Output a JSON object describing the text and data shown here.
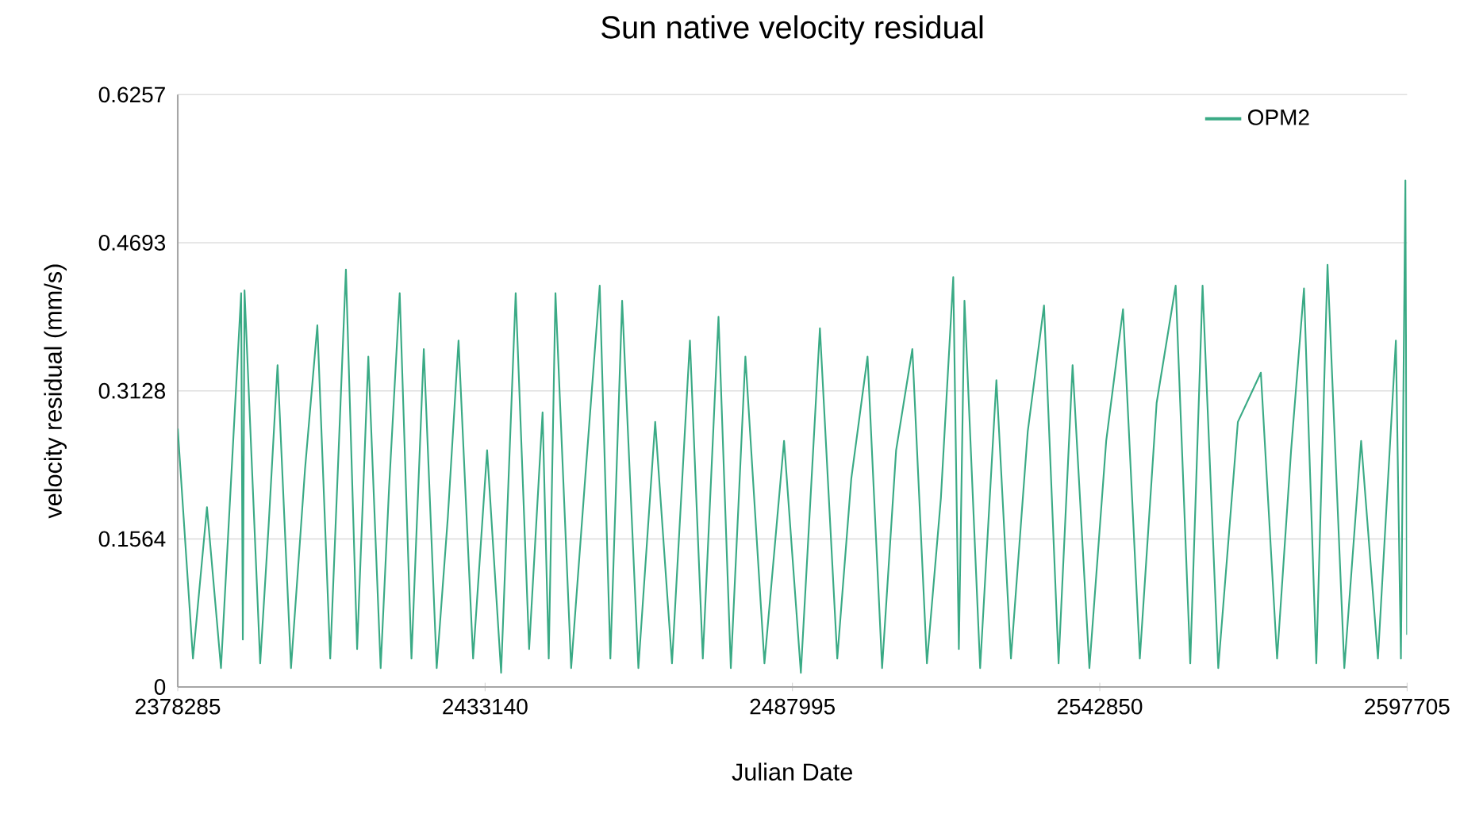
{
  "chart_data": {
    "type": "line",
    "title": "Sun native velocity residual",
    "xlabel": "Julian Date",
    "ylabel": "velocity residual (mm/s)",
    "xlim": [
      2378285,
      2597705
    ],
    "xticks": [
      2378285,
      2433140,
      2487995,
      2542850,
      2597705
    ],
    "ylim": [
      0,
      0.6257
    ],
    "yticks": [
      0,
      0.1564,
      0.3128,
      0.4693,
      0.6257
    ],
    "grid": "y",
    "legend": "top right",
    "marker": "none",
    "line_style": "solid",
    "series": [
      {
        "name": "OPM2",
        "color": "#3aaa85",
        "x": [
          2378285,
          2381000,
          2383500,
          2386000,
          2389600,
          2389900,
          2390200,
          2393000,
          2394500,
          2396100,
          2398500,
          2401000,
          2403200,
          2405500,
          2408300,
          2410300,
          2412300,
          2414500,
          2416000,
          2417900,
          2420000,
          2422200,
          2424500,
          2426500,
          2428400,
          2431000,
          2433500,
          2436000,
          2438600,
          2441000,
          2443400,
          2444500,
          2445700,
          2448500,
          2451000,
          2453600,
          2455500,
          2457600,
          2460500,
          2463500,
          2466500,
          2469700,
          2472000,
          2474800,
          2477000,
          2479600,
          2483000,
          2486500,
          2489500,
          2492900,
          2496000,
          2498500,
          2501400,
          2504000,
          2506500,
          2509400,
          2512000,
          2514500,
          2516700,
          2517700,
          2518700,
          2521500,
          2524400,
          2527000,
          2530000,
          2532900,
          2535500,
          2538000,
          2541000,
          2544000,
          2547000,
          2550000,
          2553000,
          2556400,
          2559000,
          2561200,
          2564000,
          2567500,
          2571600,
          2574500,
          2577000,
          2579300,
          2581500,
          2583500,
          2586500,
          2589500,
          2592500,
          2595700,
          2596600,
          2597400,
          2597705
        ],
        "values": [
          0.273,
          0.03,
          0.19,
          0.02,
          0.416,
          0.05,
          0.419,
          0.025,
          0.17,
          0.34,
          0.02,
          0.23,
          0.382,
          0.03,
          0.441,
          0.04,
          0.349,
          0.02,
          0.21,
          0.416,
          0.03,
          0.357,
          0.02,
          0.18,
          0.366,
          0.03,
          0.25,
          0.015,
          0.416,
          0.04,
          0.29,
          0.03,
          0.416,
          0.02,
          0.22,
          0.424,
          0.03,
          0.408,
          0.02,
          0.28,
          0.025,
          0.366,
          0.03,
          0.391,
          0.02,
          0.349,
          0.025,
          0.26,
          0.015,
          0.379,
          0.03,
          0.22,
          0.349,
          0.02,
          0.25,
          0.357,
          0.025,
          0.2,
          0.433,
          0.04,
          0.408,
          0.02,
          0.324,
          0.03,
          0.27,
          0.403,
          0.025,
          0.34,
          0.02,
          0.26,
          0.399,
          0.03,
          0.3,
          0.424,
          0.025,
          0.424,
          0.02,
          0.28,
          0.332,
          0.03,
          0.25,
          0.421,
          0.025,
          0.446,
          0.02,
          0.26,
          0.03,
          0.366,
          0.03,
          0.535,
          0.055
        ]
      }
    ]
  }
}
